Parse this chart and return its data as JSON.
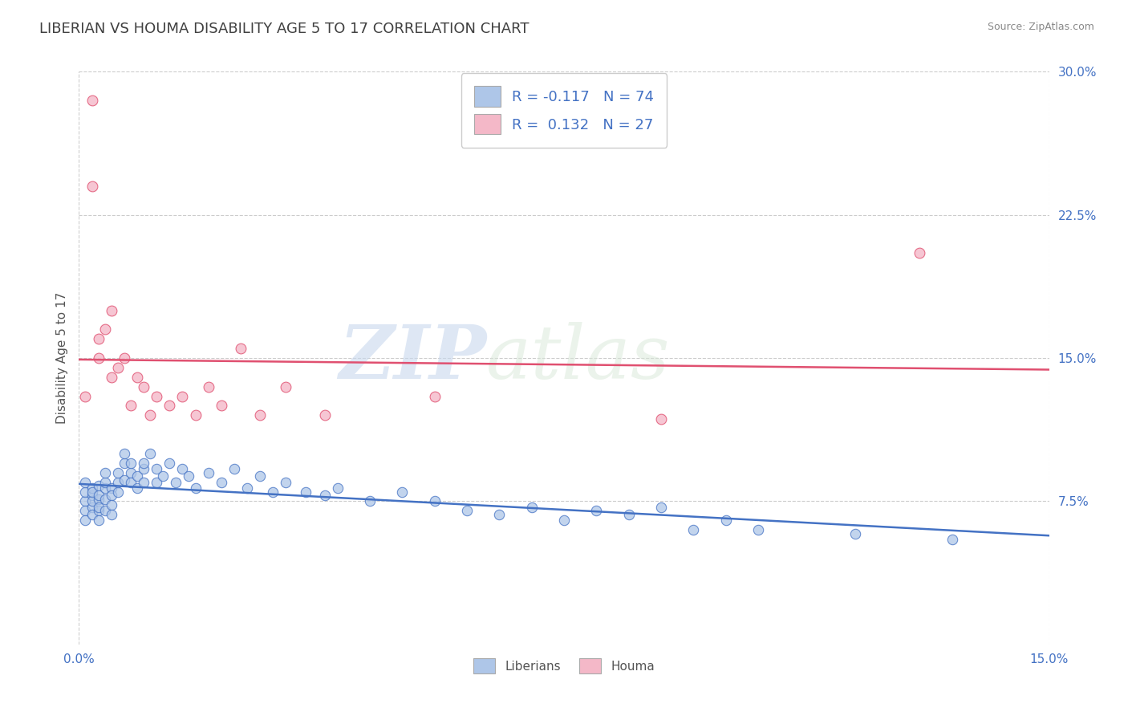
{
  "title": "LIBERIAN VS HOUMA DISABILITY AGE 5 TO 17 CORRELATION CHART",
  "source_text": "Source: ZipAtlas.com",
  "ylabel": "Disability Age 5 to 17",
  "xlim": [
    0.0,
    0.15
  ],
  "ylim": [
    0.0,
    0.3
  ],
  "ytick_labels": [
    "7.5%",
    "15.0%",
    "22.5%",
    "30.0%"
  ],
  "ytick_positions": [
    0.075,
    0.15,
    0.225,
    0.3
  ],
  "xtick_positions": [
    0.0,
    0.15
  ],
  "xtick_labels": [
    "0.0%",
    "15.0%"
  ],
  "watermark_zip": "ZIP",
  "watermark_atlas": "atlas",
  "liberian_color": "#aec6e8",
  "houma_color": "#f4b8c8",
  "liberian_line_color": "#4472c4",
  "houma_line_color": "#e05070",
  "R_liberian": -0.117,
  "N_liberian": 74,
  "R_houma": 0.132,
  "N_houma": 27,
  "title_color": "#404040",
  "title_fontsize": 13,
  "axis_label_color": "#555555",
  "tick_color": "#4472c4",
  "liberian_scatter_x": [
    0.001,
    0.001,
    0.001,
    0.001,
    0.001,
    0.002,
    0.002,
    0.002,
    0.002,
    0.002,
    0.002,
    0.003,
    0.003,
    0.003,
    0.003,
    0.003,
    0.003,
    0.004,
    0.004,
    0.004,
    0.004,
    0.004,
    0.005,
    0.005,
    0.005,
    0.005,
    0.006,
    0.006,
    0.006,
    0.007,
    0.007,
    0.007,
    0.008,
    0.008,
    0.008,
    0.009,
    0.009,
    0.01,
    0.01,
    0.01,
    0.011,
    0.012,
    0.012,
    0.013,
    0.014,
    0.015,
    0.016,
    0.017,
    0.018,
    0.02,
    0.022,
    0.024,
    0.026,
    0.028,
    0.03,
    0.032,
    0.035,
    0.038,
    0.04,
    0.045,
    0.05,
    0.055,
    0.06,
    0.065,
    0.07,
    0.075,
    0.08,
    0.085,
    0.09,
    0.095,
    0.1,
    0.105,
    0.12,
    0.135
  ],
  "liberian_scatter_y": [
    0.075,
    0.08,
    0.07,
    0.065,
    0.085,
    0.078,
    0.082,
    0.072,
    0.068,
    0.075,
    0.08,
    0.076,
    0.083,
    0.07,
    0.078,
    0.072,
    0.065,
    0.082,
    0.076,
    0.07,
    0.085,
    0.09,
    0.082,
    0.078,
    0.073,
    0.068,
    0.08,
    0.085,
    0.09,
    0.086,
    0.095,
    0.1,
    0.09,
    0.085,
    0.095,
    0.082,
    0.088,
    0.092,
    0.085,
    0.095,
    0.1,
    0.085,
    0.092,
    0.088,
    0.095,
    0.085,
    0.092,
    0.088,
    0.082,
    0.09,
    0.085,
    0.092,
    0.082,
    0.088,
    0.08,
    0.085,
    0.08,
    0.078,
    0.082,
    0.075,
    0.08,
    0.075,
    0.07,
    0.068,
    0.072,
    0.065,
    0.07,
    0.068,
    0.072,
    0.06,
    0.065,
    0.06,
    0.058,
    0.055
  ],
  "houma_scatter_x": [
    0.001,
    0.002,
    0.002,
    0.003,
    0.003,
    0.004,
    0.005,
    0.005,
    0.006,
    0.007,
    0.008,
    0.009,
    0.01,
    0.011,
    0.012,
    0.014,
    0.016,
    0.018,
    0.02,
    0.022,
    0.025,
    0.028,
    0.032,
    0.038,
    0.055,
    0.09,
    0.13
  ],
  "houma_scatter_y": [
    0.13,
    0.285,
    0.24,
    0.16,
    0.15,
    0.165,
    0.14,
    0.175,
    0.145,
    0.15,
    0.125,
    0.14,
    0.135,
    0.12,
    0.13,
    0.125,
    0.13,
    0.12,
    0.135,
    0.125,
    0.155,
    0.12,
    0.135,
    0.12,
    0.13,
    0.118,
    0.205
  ]
}
